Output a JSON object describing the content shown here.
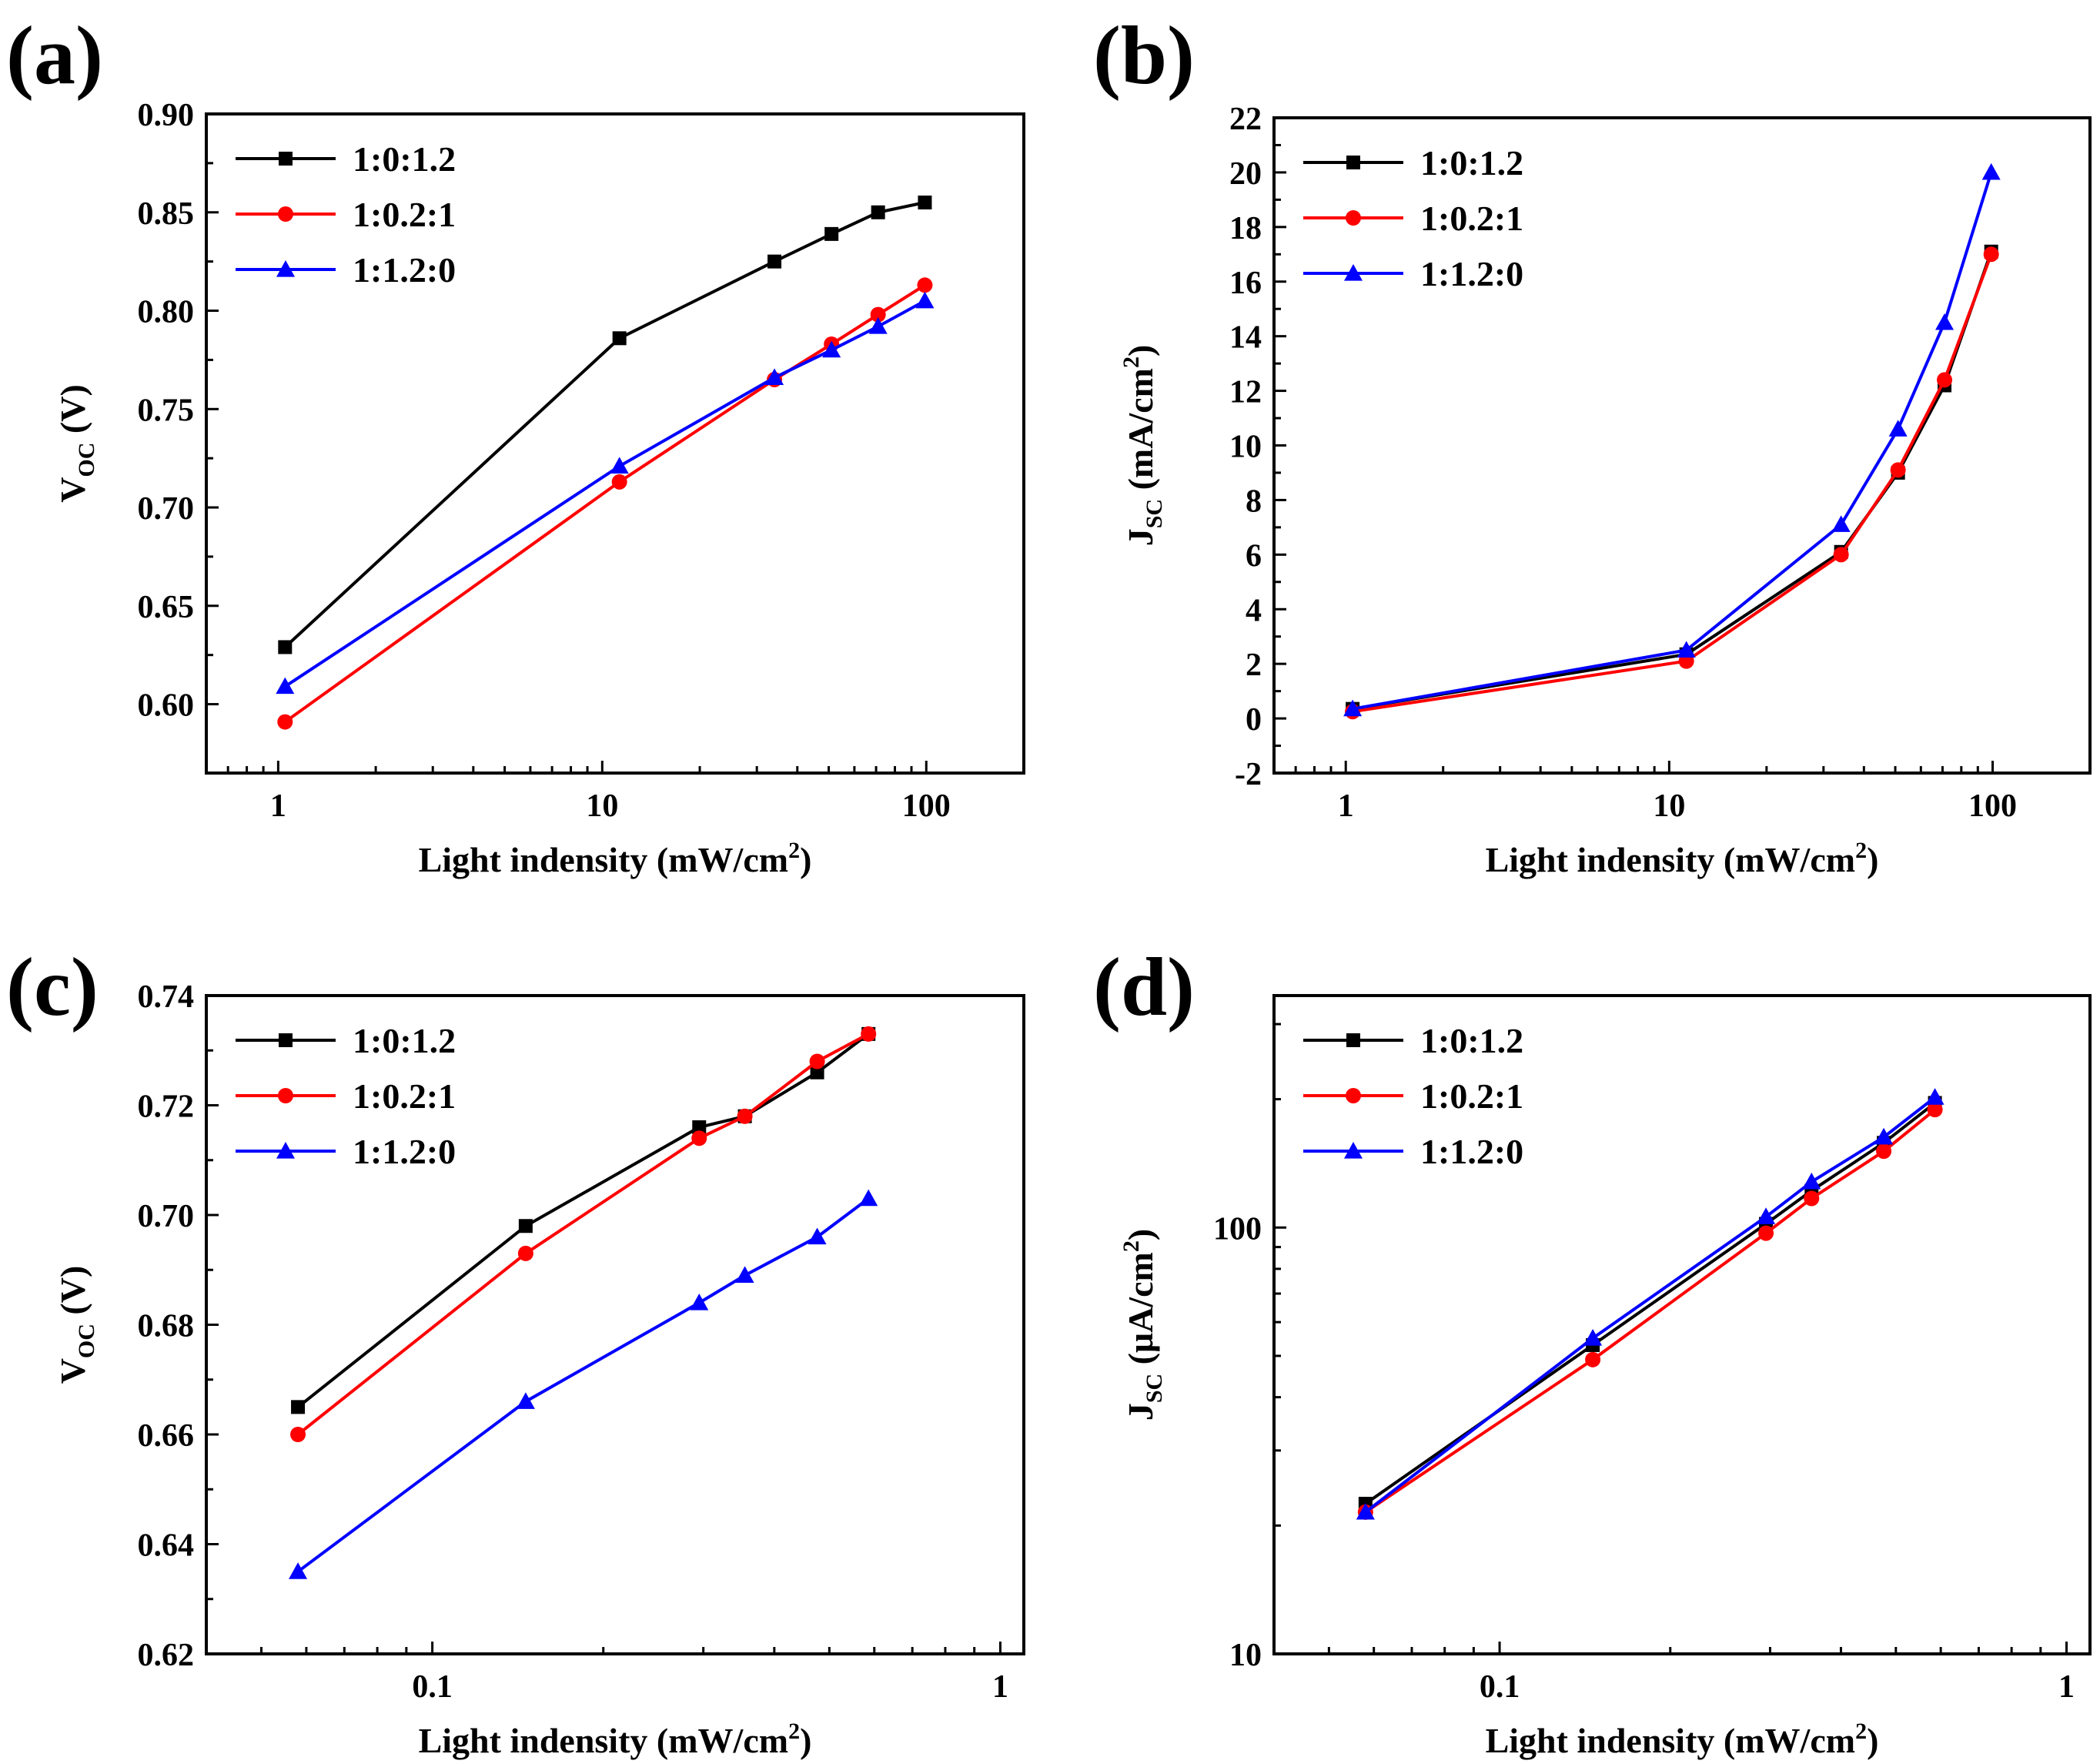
{
  "chart_data": [
    {
      "panel": "(a)",
      "type": "line",
      "xscale": "log",
      "yscale": "linear",
      "xlabel": "Light indensity (mW/cm",
      "xlabel_sup": "2",
      "xlabel_end": ")",
      "ylabel": "V",
      "ylabel_sub": "OC",
      "ylabel_end": " (V)",
      "xlim": [
        0.6,
        200
      ],
      "ylim": [
        0.565,
        0.9
      ],
      "xticks": [
        1,
        10,
        100
      ],
      "xtick_labels": [
        "1",
        "10",
        "100"
      ],
      "yticks": [
        0.6,
        0.65,
        0.7,
        0.75,
        0.8,
        0.85,
        0.9
      ],
      "ytick_labels": [
        "0.60",
        "0.65",
        "0.70",
        "0.75",
        "0.80",
        "0.85",
        "0.90"
      ],
      "legend_position": "top-left",
      "series": [
        {
          "name": "1:0:1.2",
          "color": "#000000",
          "marker": "square",
          "x": [
            1.05,
            11.3,
            34,
            51,
            71,
            99
          ],
          "y": [
            0.629,
            0.786,
            0.825,
            0.839,
            0.85,
            0.855
          ]
        },
        {
          "name": "1:0.2:1",
          "color": "#ff0000",
          "marker": "circle",
          "x": [
            1.05,
            11.3,
            34,
            51,
            71,
            99
          ],
          "y": [
            0.591,
            0.713,
            0.765,
            0.783,
            0.798,
            0.813
          ]
        },
        {
          "name": "1:1.2:0",
          "color": "#0000ff",
          "marker": "triangle",
          "x": [
            1.05,
            11.3,
            34,
            51,
            71,
            99
          ],
          "y": [
            0.609,
            0.721,
            0.766,
            0.78,
            0.792,
            0.805
          ]
        }
      ]
    },
    {
      "panel": "(b)",
      "type": "line",
      "xscale": "log",
      "yscale": "linear",
      "xlabel": "Light indensity (mW/cm",
      "xlabel_sup": "2",
      "xlabel_end": ")",
      "ylabel": "J",
      "ylabel_sub": "SC",
      "ylabel_end": " (mA/cm",
      "ylabel_sup": "2",
      "ylabel_end2": ")",
      "xlim": [
        0.6,
        200
      ],
      "ylim": [
        -2,
        22
      ],
      "xticks": [
        1,
        10,
        100
      ],
      "xtick_labels": [
        "1",
        "10",
        "100"
      ],
      "yticks": [
        -2,
        0,
        2,
        4,
        6,
        8,
        10,
        12,
        14,
        16,
        18,
        20,
        22
      ],
      "ytick_labels": [
        "-2",
        "0",
        "2",
        "4",
        "6",
        "8",
        "10",
        "12",
        "14",
        "16",
        "18",
        "20",
        "22"
      ],
      "legend_position": "top-left",
      "series": [
        {
          "name": "1:0:1.2",
          "color": "#000000",
          "marker": "square",
          "x": [
            1.05,
            11.3,
            34,
            51,
            71,
            99
          ],
          "y": [
            0.35,
            2.35,
            6.1,
            9.0,
            12.2,
            17.1
          ]
        },
        {
          "name": "1:0.2:1",
          "color": "#ff0000",
          "marker": "circle",
          "x": [
            1.05,
            11.3,
            34,
            51,
            71,
            99
          ],
          "y": [
            0.25,
            2.1,
            6.0,
            9.1,
            12.4,
            17.0
          ]
        },
        {
          "name": "1:1.2:0",
          "color": "#0000ff",
          "marker": "triangle",
          "x": [
            1.05,
            11.3,
            34,
            51,
            71,
            99
          ],
          "y": [
            0.35,
            2.5,
            7.1,
            10.6,
            14.5,
            20.0
          ]
        }
      ]
    },
    {
      "panel": "(c)",
      "type": "line",
      "xscale": "log",
      "yscale": "linear",
      "xlabel": "Light indensity (mW/cm",
      "xlabel_sup": "2",
      "xlabel_end": ")",
      "ylabel": "V",
      "ylabel_sub": "OC",
      "ylabel_end": " (V)",
      "xlim": [
        0.04,
        1.1
      ],
      "ylim": [
        0.62,
        0.74
      ],
      "xticks": [
        0.1,
        1
      ],
      "xtick_labels": [
        "0.1",
        "1"
      ],
      "yticks": [
        0.62,
        0.64,
        0.66,
        0.68,
        0.7,
        0.72,
        0.74
      ],
      "ytick_labels": [
        "0.62",
        "0.64",
        "0.66",
        "0.68",
        "0.70",
        "0.72",
        "0.74"
      ],
      "legend_position": "top-left",
      "series": [
        {
          "name": "1:0:1.2",
          "color": "#000000",
          "marker": "square",
          "x": [
            0.058,
            0.146,
            0.295,
            0.355,
            0.476,
            0.586
          ],
          "y": [
            0.665,
            0.698,
            0.716,
            0.718,
            0.726,
            0.733
          ]
        },
        {
          "name": "1:0.2:1",
          "color": "#ff0000",
          "marker": "circle",
          "x": [
            0.058,
            0.146,
            0.295,
            0.355,
            0.476,
            0.586
          ],
          "y": [
            0.66,
            0.693,
            0.714,
            0.718,
            0.728,
            0.733
          ]
        },
        {
          "name": "1:1.2:0",
          "color": "#0000ff",
          "marker": "triangle",
          "x": [
            0.058,
            0.146,
            0.295,
            0.355,
            0.476,
            0.586
          ],
          "y": [
            0.635,
            0.666,
            0.684,
            0.689,
            0.696,
            0.703
          ]
        }
      ]
    },
    {
      "panel": "(d)",
      "type": "line",
      "xscale": "log",
      "yscale": "log",
      "xlabel": "Light indensity (mW/cm",
      "xlabel_sup": "2",
      "xlabel_end": ")",
      "ylabel": "J",
      "ylabel_sub": "SC",
      "ylabel_end": " (μA/cm",
      "ylabel_sup": "2",
      "ylabel_end2": ")",
      "xlim": [
        0.04,
        1.1
      ],
      "ylim": [
        10,
        350
      ],
      "xticks": [
        0.1,
        1
      ],
      "xtick_labels": [
        "0.1",
        "1"
      ],
      "yticks": [
        10,
        100
      ],
      "ytick_labels": [
        "10",
        "100"
      ],
      "legend_position": "top-left",
      "series": [
        {
          "name": "1:0:1.2",
          "color": "#000000",
          "marker": "square",
          "x": [
            0.058,
            0.146,
            0.295,
            0.355,
            0.476,
            0.586
          ],
          "y": [
            22.5,
            53,
            102,
            122,
            158,
            196
          ]
        },
        {
          "name": "1:0.2:1",
          "color": "#ff0000",
          "marker": "circle",
          "x": [
            0.058,
            0.146,
            0.295,
            0.355,
            0.476,
            0.586
          ],
          "y": [
            21.5,
            49,
            97,
            117,
            151,
            189
          ]
        },
        {
          "name": "1:1.2:0",
          "color": "#0000ff",
          "marker": "triangle",
          "x": [
            0.058,
            0.146,
            0.295,
            0.355,
            0.476,
            0.586
          ],
          "y": [
            21.5,
            55,
            106,
            128,
            163,
            202
          ]
        }
      ]
    }
  ]
}
